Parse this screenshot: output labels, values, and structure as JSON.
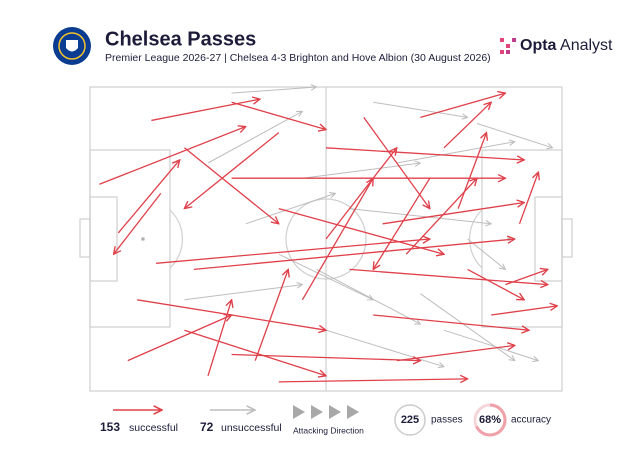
{
  "chart_data": {
    "type": "pass-map",
    "title": "Chelsea Passes",
    "subtitle": "Premier League 2026-27 | Chelsea 4-3 Brighton and Hove Albion (30 August 2026)",
    "brand": {
      "bold": "Opta",
      "regular": "Analyst"
    },
    "xlim": [
      0,
      100
    ],
    "ylim": [
      0,
      100
    ],
    "series": [
      {
        "name": "successful",
        "count": 153,
        "color": "#e0404a",
        "passes": [
          {
            "start": [
              2,
              32
            ],
            "end": [
              33,
              13
            ]
          },
          {
            "start": [
              6,
              48
            ],
            "end": [
              19,
              24
            ]
          },
          {
            "start": [
              13,
              11
            ],
            "end": [
              36,
              4
            ]
          },
          {
            "start": [
              30,
              5
            ],
            "end": [
              50,
              14
            ]
          },
          {
            "start": [
              14,
              58
            ],
            "end": [
              72,
              50
            ]
          },
          {
            "start": [
              10,
              70
            ],
            "end": [
              50,
              80
            ]
          },
          {
            "start": [
              20,
              80
            ],
            "end": [
              50,
              95
            ]
          },
          {
            "start": [
              30,
              88
            ],
            "end": [
              70,
              90
            ]
          },
          {
            "start": [
              40,
              97
            ],
            "end": [
              80,
              96
            ]
          },
          {
            "start": [
              22,
              60
            ],
            "end": [
              90,
              50
            ]
          },
          {
            "start": [
              30,
              30
            ],
            "end": [
              88,
              30
            ]
          },
          {
            "start": [
              40,
              40
            ],
            "end": [
              75,
              55
            ]
          },
          {
            "start": [
              50,
              20
            ],
            "end": [
              92,
              24
            ]
          },
          {
            "start": [
              55,
              60
            ],
            "end": [
              97,
              65
            ]
          },
          {
            "start": [
              60,
              75
            ],
            "end": [
              93,
              80
            ]
          },
          {
            "start": [
              65,
              90
            ],
            "end": [
              90,
              85
            ]
          },
          {
            "start": [
              70,
              10
            ],
            "end": [
              88,
              2
            ]
          },
          {
            "start": [
              75,
              20
            ],
            "end": [
              85,
              5
            ]
          },
          {
            "start": [
              78,
              40
            ],
            "end": [
              84,
              15
            ]
          },
          {
            "start": [
              80,
              60
            ],
            "end": [
              92,
              70
            ]
          },
          {
            "start": [
              85,
              75
            ],
            "end": [
              99,
              72
            ]
          },
          {
            "start": [
              45,
              70
            ],
            "end": [
              60,
              30
            ]
          },
          {
            "start": [
              35,
              90
            ],
            "end": [
              42,
              60
            ]
          },
          {
            "start": [
              25,
              95
            ],
            "end": [
              30,
              70
            ]
          },
          {
            "start": [
              20,
              20
            ],
            "end": [
              40,
              45
            ]
          },
          {
            "start": [
              50,
              50
            ],
            "end": [
              65,
              20
            ]
          },
          {
            "start": [
              58,
              10
            ],
            "end": [
              72,
              40
            ]
          },
          {
            "start": [
              62,
              45
            ],
            "end": [
              92,
              38
            ]
          },
          {
            "start": [
              72,
              30
            ],
            "end": [
              60,
              60
            ]
          },
          {
            "start": [
              8,
              90
            ],
            "end": [
              30,
              75
            ]
          },
          {
            "start": [
              15,
              35
            ],
            "end": [
              5,
              55
            ]
          },
          {
            "start": [
              40,
              15
            ],
            "end": [
              20,
              40
            ]
          },
          {
            "start": [
              88,
              65
            ],
            "end": [
              97,
              60
            ]
          },
          {
            "start": [
              91,
              45
            ],
            "end": [
              95,
              28
            ]
          },
          {
            "start": [
              67,
              55
            ],
            "end": [
              82,
              30
            ]
          }
        ]
      },
      {
        "name": "unsuccessful",
        "count": 72,
        "color": "#bdbdbd",
        "passes": [
          {
            "start": [
              30,
              2
            ],
            "end": [
              48,
              0
            ]
          },
          {
            "start": [
              60,
              5
            ],
            "end": [
              80,
              10
            ]
          },
          {
            "start": [
              45,
              30
            ],
            "end": [
              70,
              25
            ]
          },
          {
            "start": [
              55,
              40
            ],
            "end": [
              85,
              45
            ]
          },
          {
            "start": [
              20,
              70
            ],
            "end": [
              45,
              65
            ]
          },
          {
            "start": [
              50,
              80
            ],
            "end": [
              75,
              92
            ]
          },
          {
            "start": [
              70,
              68
            ],
            "end": [
              90,
              90
            ]
          },
          {
            "start": [
              40,
              55
            ],
            "end": [
              60,
              70
            ]
          },
          {
            "start": [
              80,
              50
            ],
            "end": [
              88,
              60
            ]
          },
          {
            "start": [
              33,
              45
            ],
            "end": [
              52,
              35
            ]
          },
          {
            "start": [
              65,
              25
            ],
            "end": [
              90,
              18
            ]
          },
          {
            "start": [
              25,
              25
            ],
            "end": [
              45,
              8
            ]
          },
          {
            "start": [
              75,
              80
            ],
            "end": [
              95,
              90
            ]
          },
          {
            "start": [
              48,
              60
            ],
            "end": [
              70,
              78
            ]
          },
          {
            "start": [
              82,
              12
            ],
            "end": [
              98,
              20
            ]
          }
        ]
      }
    ],
    "direction_label": "Attacking Direction",
    "total": {
      "value": 225,
      "label": "passes"
    },
    "accuracy": {
      "value": 68,
      "value_label": "68%",
      "label": "accuracy"
    }
  }
}
